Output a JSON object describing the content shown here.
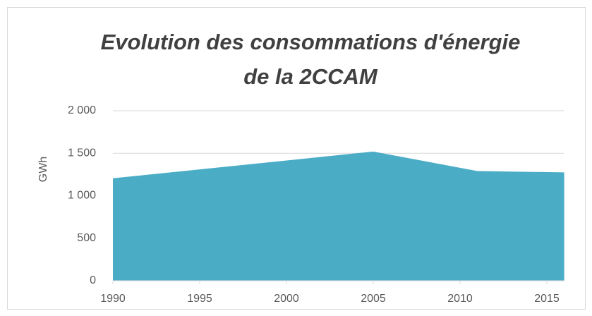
{
  "chart_data": {
    "type": "area",
    "title": [
      "Evolution des consommations d'énergie",
      "de la 2CCAM"
    ],
    "y_label": "GWh",
    "x": [
      1990,
      2005,
      2011,
      2016
    ],
    "series": [
      {
        "name": "GWh",
        "color": "#4bacc6",
        "values": [
          1205,
          1520,
          1290,
          1275
        ]
      }
    ],
    "xlim": [
      1990,
      2016
    ],
    "xticks": [
      1990,
      1995,
      2000,
      2005,
      2010,
      2015
    ],
    "ylim": [
      0,
      2000
    ],
    "yticks": [
      0,
      500,
      {
        "value": 1000,
        "label": "1 000"
      },
      {
        "value": 1500,
        "label": "1 500"
      },
      {
        "value": 2000,
        "label": "2 000"
      }
    ],
    "grid": true
  }
}
